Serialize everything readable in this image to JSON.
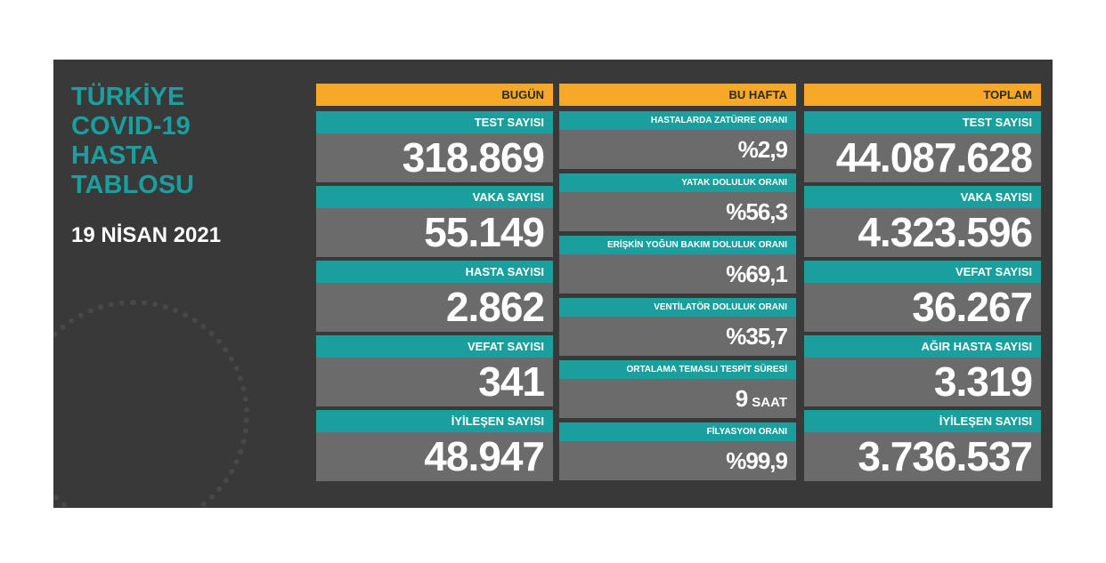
{
  "title": [
    "TÜRKİYE",
    "COVID-19",
    "HASTA",
    "TABLOSU"
  ],
  "date": "19 NİSAN 2021",
  "columns": [
    {
      "header": "BUGÜN",
      "cells": [
        {
          "label": "TEST SAYISI",
          "value": "318.869"
        },
        {
          "label": "VAKA SAYISI",
          "value": "55.149"
        },
        {
          "label": "HASTA SAYISI",
          "value": "2.862"
        },
        {
          "label": "VEFAT SAYISI",
          "value": "341"
        },
        {
          "label": "İYİLEŞEN SAYISI",
          "value": "48.947"
        }
      ]
    },
    {
      "header": "BU HAFTA",
      "cells": [
        {
          "label": "HASTALARDA ZATÜRRE ORANI",
          "value": "%2,9"
        },
        {
          "label": "YATAK DOLULUK ORANI",
          "value": "%56,3"
        },
        {
          "label": "ERİŞKİN YOĞUN BAKIM DOLULUK ORANI",
          "value": "%69,1"
        },
        {
          "label": "VENTİLATÖR DOLULUK ORANI",
          "value": "%35,7"
        },
        {
          "label": "ORTALAMA TEMASLI TESPİT SÜRESİ",
          "value": "9",
          "unit": "SAAT"
        },
        {
          "label": "FİLYASYON ORANI",
          "value": "%99,9"
        }
      ]
    },
    {
      "header": "TOPLAM",
      "cells": [
        {
          "label": "TEST SAYISI",
          "value": "44.087.628"
        },
        {
          "label": "VAKA SAYISI",
          "value": "4.323.596"
        },
        {
          "label": "VEFAT SAYISI",
          "value": "36.267"
        },
        {
          "label": "AĞIR HASTA SAYISI",
          "value": "3.319"
        },
        {
          "label": "İYİLEŞEN SAYISI",
          "value": "3.736.537"
        }
      ]
    }
  ]
}
